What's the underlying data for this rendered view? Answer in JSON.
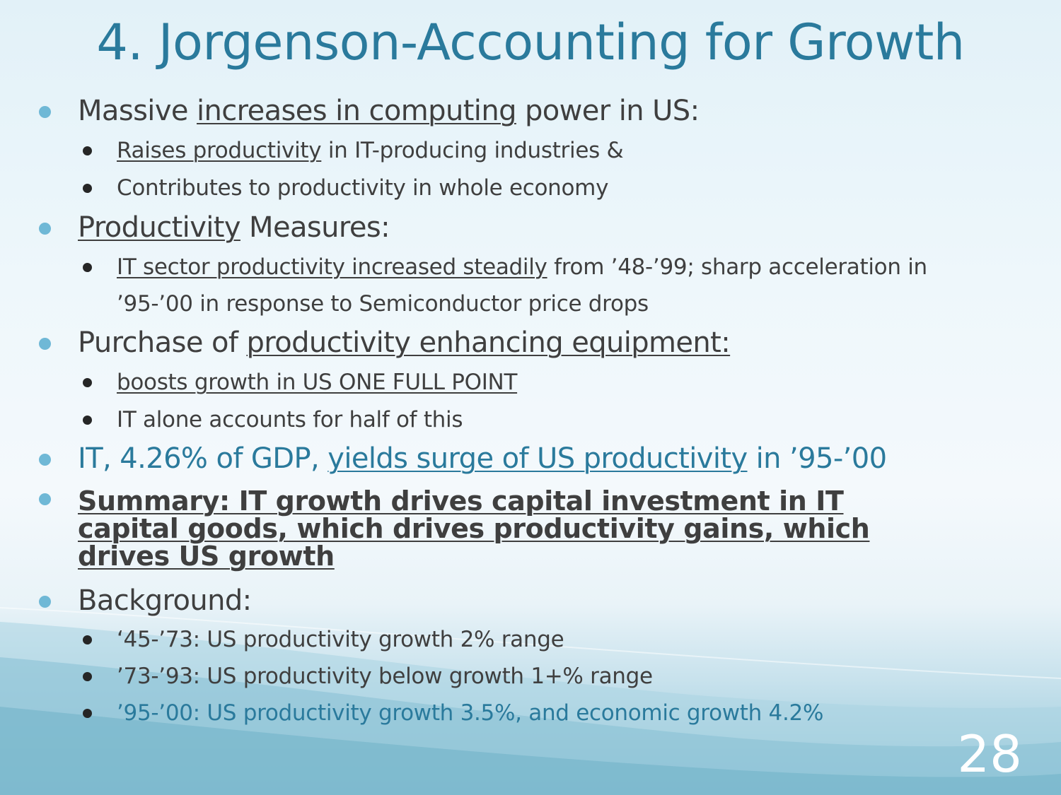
{
  "slide": {
    "title": "4. Jorgenson-Accounting for Growth",
    "page_number": "28",
    "colors": {
      "title": "#2a7a9c",
      "bullet_l1": "#6fb8d6",
      "text": "#3f3f3f",
      "highlight": "#2a7a9c"
    }
  },
  "b1": {
    "pre": "Massive ",
    "u": "increases in computing",
    "post": " power in US:",
    "s1": {
      "u": "Raises productivity",
      "post": " in IT-producing industries &"
    },
    "s2": {
      "text": "Contributes to productivity in whole economy"
    }
  },
  "b2": {
    "u": "Productivity",
    "post": " Measures:",
    "s1": {
      "u": "IT sector productivity increased steadily",
      "post": " from ’48-’99; sharp acceleration in",
      "line2": "’95-’00 in response to Semiconductor price drops"
    }
  },
  "b3": {
    "pre": "Purchase of ",
    "u": "productivity enhancing equipment:",
    "s1": {
      "u": "boosts growth in US ONE FULL POINT"
    },
    "s2": {
      "text": "IT alone accounts for half of this"
    }
  },
  "b4": {
    "pre": "IT, 4.26% of GDP, ",
    "u": "yields surge of US productivity",
    "post": " in ’95-’00"
  },
  "b5": {
    "line1": "Summary: IT growth drives capital investment in IT",
    "line2": "capital goods, which drives productivity gains, which",
    "line3": "drives US growth"
  },
  "b6": {
    "text": "Background:",
    "s1": "‘45-’73: US productivity growth 2% range",
    "s2": "’73-’93: US productivity below growth 1+% range",
    "s3": "’95-’00: US productivity growth 3.5%, and economic growth 4.2%"
  }
}
